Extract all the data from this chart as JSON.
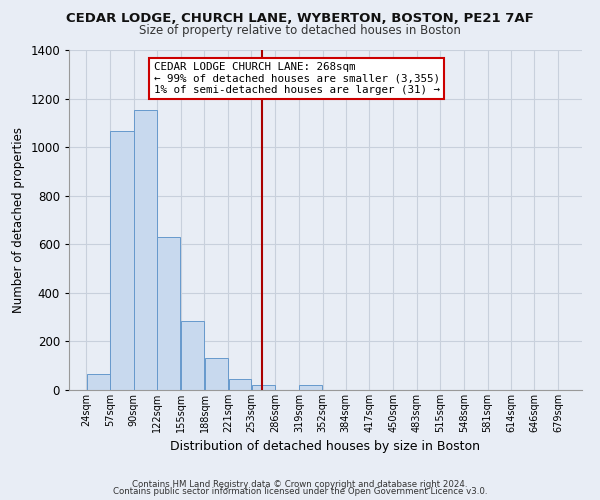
{
  "title": "CEDAR LODGE, CHURCH LANE, WYBERTON, BOSTON, PE21 7AF",
  "subtitle": "Size of property relative to detached houses in Boston",
  "xlabel": "Distribution of detached houses by size in Boston",
  "ylabel": "Number of detached properties",
  "bar_left_edges": [
    24,
    57,
    90,
    122,
    155,
    188,
    221,
    253,
    286,
    319,
    352,
    384,
    417,
    450,
    483,
    515,
    548,
    581,
    614,
    646
  ],
  "bar_heights": [
    65,
    1065,
    1155,
    630,
    285,
    130,
    47,
    20,
    0,
    20,
    0,
    0,
    0,
    0,
    0,
    0,
    0,
    0,
    0,
    0
  ],
  "bar_widths": [
    33,
    33,
    32,
    33,
    33,
    33,
    32,
    33,
    33,
    33,
    32,
    33,
    33,
    33,
    32,
    33,
    33,
    33,
    32,
    33
  ],
  "tick_labels": [
    "24sqm",
    "57sqm",
    "90sqm",
    "122sqm",
    "155sqm",
    "188sqm",
    "221sqm",
    "253sqm",
    "286sqm",
    "319sqm",
    "352sqm",
    "384sqm",
    "417sqm",
    "450sqm",
    "483sqm",
    "515sqm",
    "548sqm",
    "581sqm",
    "614sqm",
    "646sqm",
    "679sqm"
  ],
  "tick_positions": [
    24,
    57,
    90,
    122,
    155,
    188,
    221,
    253,
    286,
    319,
    352,
    384,
    417,
    450,
    483,
    515,
    548,
    581,
    614,
    646,
    679
  ],
  "bar_color": "#c8d9ee",
  "bar_edge_color": "#6699cc",
  "vline_x": 268,
  "vline_color": "#aa0000",
  "annotation_title": "CEDAR LODGE CHURCH LANE: 268sqm",
  "annotation_line1": "← 99% of detached houses are smaller (3,355)",
  "annotation_line2": "1% of semi-detached houses are larger (31) →",
  "ylim": [
    0,
    1400
  ],
  "xlim": [
    0,
    712
  ],
  "yticks": [
    0,
    200,
    400,
    600,
    800,
    1000,
    1200,
    1400
  ],
  "footer1": "Contains HM Land Registry data © Crown copyright and database right 2024.",
  "footer2": "Contains public sector information licensed under the Open Government Licence v3.0.",
  "background_color": "#e8edf5",
  "plot_bg_color": "#e8edf5",
  "grid_color": "#c8d0dc",
  "annotation_box_color": "#ffffff",
  "annotation_box_edge": "#cc0000"
}
